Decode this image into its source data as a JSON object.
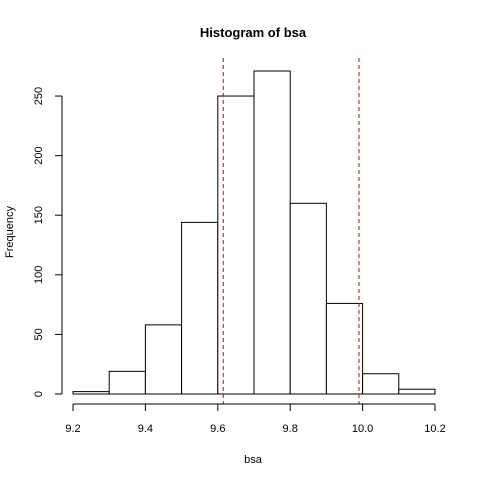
{
  "chart_data": {
    "type": "bar",
    "title": "Histogram of bsa",
    "xlabel": "bsa",
    "ylabel": "Frequency",
    "bins": [
      {
        "x0": 9.2,
        "x1": 9.3,
        "count": 2
      },
      {
        "x0": 9.3,
        "x1": 9.4,
        "count": 19
      },
      {
        "x0": 9.4,
        "x1": 9.5,
        "count": 58
      },
      {
        "x0": 9.5,
        "x1": 9.6,
        "count": 144
      },
      {
        "x0": 9.6,
        "x1": 9.7,
        "count": 250
      },
      {
        "x0": 9.7,
        "x1": 9.8,
        "count": 271
      },
      {
        "x0": 9.8,
        "x1": 9.9,
        "count": 160
      },
      {
        "x0": 9.9,
        "x1": 10.0,
        "count": 76
      },
      {
        "x0": 10.0,
        "x1": 10.1,
        "count": 17
      },
      {
        "x0": 10.1,
        "x1": 10.2,
        "count": 4
      }
    ],
    "xlim": [
      9.2,
      10.2
    ],
    "ylim": [
      0,
      271
    ],
    "x_ticks": [
      9.2,
      9.4,
      9.6,
      9.8,
      10.0,
      10.2
    ],
    "x_tick_labels": [
      "9.2",
      "9.4",
      "9.6",
      "9.8",
      "10.0",
      "10.2"
    ],
    "y_ticks": [
      0,
      50,
      100,
      150,
      200,
      250
    ],
    "y_tick_labels": [
      "0",
      "50",
      "100",
      "150",
      "200",
      "250"
    ],
    "reference_lines": [
      {
        "x": 9.615,
        "color": "#cc0000",
        "style": "dashed"
      },
      {
        "x": 9.99,
        "color": "#cc0000",
        "style": "dashed"
      }
    ],
    "bar_fill": "#ffffff",
    "bar_stroke": "#000000",
    "grid": false
  }
}
